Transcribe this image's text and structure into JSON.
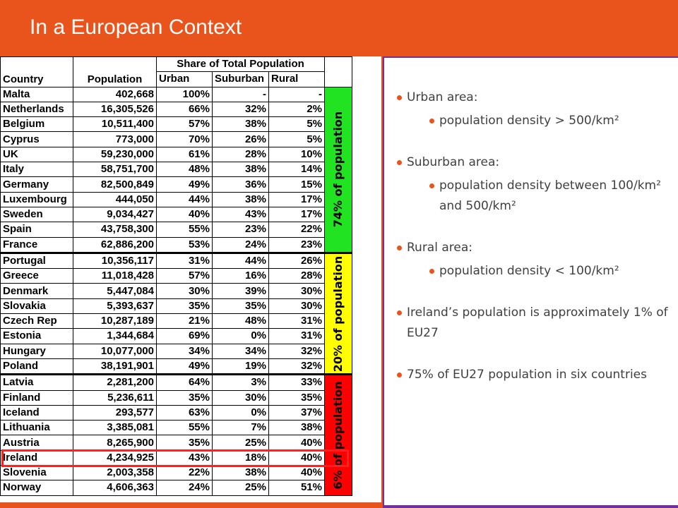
{
  "slide": {
    "title": "In a European Context"
  },
  "table": {
    "headers": {
      "country": "Country",
      "population": "Population",
      "share": "Share of Total Population",
      "urban": "Urban",
      "suburban": "Suburban",
      "rural": "Rural"
    },
    "groups": [
      {
        "label": "74% of population",
        "color": "#21e321"
      },
      {
        "label": "20% of population",
        "color": "#ffff00"
      },
      {
        "label": "6% of population",
        "color": "#ff0000"
      }
    ],
    "rows": [
      [
        "Malta",
        "402,668",
        "100%",
        "-",
        "-"
      ],
      [
        "Netherlands",
        "16,305,526",
        "66%",
        "32%",
        "2%"
      ],
      [
        "Belgium",
        "10,511,400",
        "57%",
        "38%",
        "5%"
      ],
      [
        "Cyprus",
        "773,000",
        "70%",
        "26%",
        "5%"
      ],
      [
        "UK",
        "59,230,000",
        "61%",
        "28%",
        "10%"
      ],
      [
        "Italy",
        "58,751,700",
        "48%",
        "38%",
        "14%"
      ],
      [
        "Germany",
        "82,500,849",
        "49%",
        "36%",
        "15%"
      ],
      [
        "Luxembourg",
        "444,050",
        "44%",
        "38%",
        "17%"
      ],
      [
        "Sweden",
        "9,034,427",
        "40%",
        "43%",
        "17%"
      ],
      [
        "Spain",
        "43,758,300",
        "55%",
        "23%",
        "22%"
      ],
      [
        "France",
        "62,886,200",
        "53%",
        "24%",
        "23%"
      ],
      [
        "Portugal",
        "10,356,117",
        "31%",
        "44%",
        "26%"
      ],
      [
        "Greece",
        "11,018,428",
        "57%",
        "16%",
        "28%"
      ],
      [
        "Denmark",
        "5,447,084",
        "30%",
        "39%",
        "30%"
      ],
      [
        "Slovakia",
        "5,393,637",
        "35%",
        "35%",
        "30%"
      ],
      [
        "Czech Rep",
        "10,287,189",
        "21%",
        "48%",
        "31%"
      ],
      [
        "Estonia",
        "1,344,684",
        "69%",
        "0%",
        "31%"
      ],
      [
        "Hungary",
        "10,077,000",
        "34%",
        "34%",
        "32%"
      ],
      [
        "Poland",
        "38,191,901",
        "49%",
        "19%",
        "32%"
      ],
      [
        "Latvia",
        "2,281,200",
        "64%",
        "3%",
        "33%"
      ],
      [
        "Finland",
        "5,236,611",
        "35%",
        "30%",
        "35%"
      ],
      [
        "Iceland",
        "293,577",
        "63%",
        "0%",
        "37%"
      ],
      [
        "Lithuania",
        "3,385,081",
        "55%",
        "7%",
        "38%"
      ],
      [
        "Austria",
        "8,265,900",
        "35%",
        "25%",
        "40%"
      ],
      [
        "Ireland",
        "4,234,925",
        "43%",
        "18%",
        "40%"
      ],
      [
        "Slovenia",
        "2,003,358",
        "22%",
        "38%",
        "40%"
      ],
      [
        "Norway",
        "4,606,363",
        "24%",
        "25%",
        "51%"
      ]
    ],
    "highlight_color": "#ff2020"
  },
  "bullets": [
    {
      "text": "Urban area:",
      "sub": "population density > 500/km²"
    },
    {
      "text": "Suburban area:",
      "sub": "population density between 100/km² and 500/km²"
    },
    {
      "text": "Rural area:",
      "sub": "population density < 100/km²"
    },
    {
      "text": "Ireland’s population is approximately 1% of EU27",
      "sub": null
    },
    {
      "text": "75% of EU27 population in six countries",
      "sub": null
    }
  ],
  "colors": {
    "accent": "#e8541c",
    "panel_border": "#7030a0"
  }
}
